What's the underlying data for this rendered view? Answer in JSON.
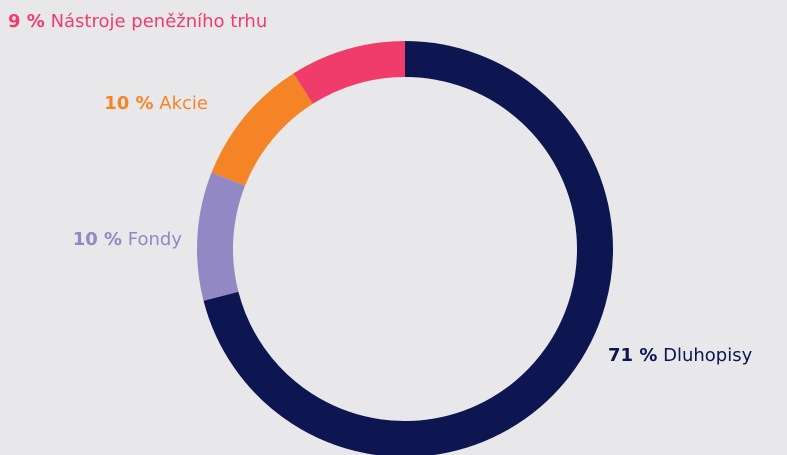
{
  "chart_data": {
    "type": "pie",
    "categories": [
      "Dluhopisy",
      "Fondy",
      "Akcie",
      "Nástroje peněžního trhu"
    ],
    "values": [
      71,
      10,
      10,
      9
    ],
    "value_labels": [
      "71 %",
      "10 %",
      "10 %",
      "9 %"
    ],
    "colors": [
      "#0d1650",
      "#9188c4",
      "#f58426",
      "#f03c6a"
    ]
  }
}
